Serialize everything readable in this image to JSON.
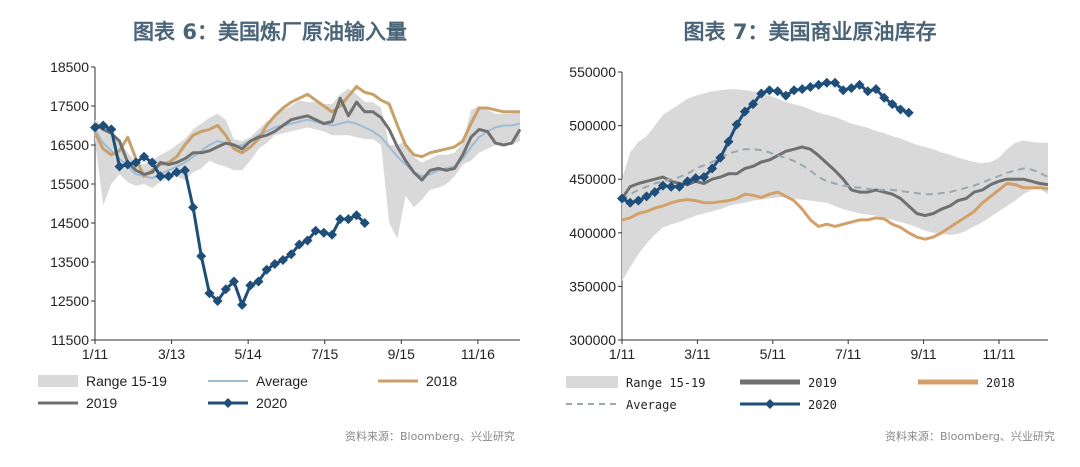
{
  "left": {
    "title": "图表 6：美国炼厂原油输入量",
    "source": "资料来源：Bloomberg、兴业研究",
    "chart_data": {
      "type": "line",
      "title": "图表 6：美国炼厂原油输入量",
      "xlabel": "",
      "ylabel": "",
      "x_ticks": [
        "1/11",
        "3/13",
        "5/14",
        "7/15",
        "9/15",
        "11/16"
      ],
      "y_ticks": [
        11500,
        12500,
        13500,
        14500,
        15500,
        16500,
        17500,
        18500
      ],
      "ylim": [
        11500,
        18500
      ],
      "x_range_weeks": [
        0,
        52
      ],
      "grid": false,
      "legend": [
        "Range 15-19",
        "Average",
        "2018",
        "2019",
        "2020"
      ],
      "series": [
        {
          "name": "Range 15-19",
          "type": "band",
          "color": "#d9d9d9",
          "upper": [
            17150,
            16900,
            16750,
            16600,
            16300,
            16050,
            16000,
            16100,
            16250,
            16350,
            16500,
            16650,
            16900,
            17050,
            17200,
            17300,
            17150,
            16650,
            16600,
            16700,
            16900,
            17100,
            17250,
            17400,
            17500,
            17650,
            17600,
            17600,
            17550,
            17550,
            17800,
            17950,
            17800,
            17600,
            17600,
            17450,
            16500,
            16500,
            16600,
            16200,
            16050,
            16150,
            16250,
            16250,
            16300,
            16550,
            17400,
            17500,
            17400,
            17300,
            17300,
            17300,
            17400
          ],
          "lower": [
            16600,
            14950,
            15500,
            15750,
            15550,
            15450,
            15500,
            15400,
            15550,
            15650,
            15700,
            15600,
            15800,
            15900,
            16100,
            16000,
            15950,
            15850,
            15850,
            16100,
            16400,
            16550,
            16750,
            16800,
            16850,
            16900,
            16950,
            16900,
            16850,
            16750,
            16750,
            16750,
            16700,
            16650,
            16650,
            16500,
            14500,
            14100,
            15200,
            14900,
            15100,
            15350,
            15400,
            15500,
            15700,
            16000,
            16100,
            16300,
            16400,
            16500,
            16550,
            16500,
            16600
          ]
        },
        {
          "name": "Average",
          "color": "#9fbcd3",
          "values": [
            16900,
            16550,
            16350,
            16150,
            15950,
            15750,
            15700,
            15650,
            15750,
            15850,
            15950,
            16050,
            16200,
            16350,
            16500,
            16600,
            16550,
            16450,
            16500,
            16600,
            16750,
            16850,
            16950,
            17000,
            17050,
            17100,
            17150,
            17100,
            17050,
            17000,
            17050,
            17100,
            17050,
            16950,
            16850,
            16700,
            16450,
            16200,
            16000,
            15800,
            15700,
            15750,
            15850,
            15900,
            15950,
            16150,
            16450,
            16700,
            16850,
            16950,
            17000,
            17000,
            17050
          ]
        },
        {
          "name": "2018",
          "color": "#c8a06a",
          "values": [
            16800,
            16400,
            16250,
            16350,
            16700,
            16150,
            15700,
            15850,
            16000,
            16050,
            16200,
            16500,
            16750,
            16850,
            16900,
            17000,
            16750,
            16400,
            16300,
            16450,
            16650,
            17000,
            17250,
            17450,
            17600,
            17700,
            17800,
            17650,
            17500,
            17350,
            17500,
            17750,
            18000,
            17850,
            17800,
            17650,
            17550,
            17000,
            16500,
            16250,
            16200,
            16300,
            16350,
            16400,
            16450,
            16600,
            17050,
            17450,
            17450,
            17400,
            17350,
            17350,
            17350
          ]
        },
        {
          "name": "2019",
          "color": "#707070",
          "values": [
            17050,
            16900,
            16800,
            16600,
            16050,
            15850,
            15750,
            15800,
            16050,
            16000,
            16050,
            16150,
            16300,
            16300,
            16350,
            16450,
            16550,
            16500,
            16400,
            16600,
            16700,
            16750,
            16850,
            17000,
            17150,
            17200,
            17250,
            17150,
            17050,
            17100,
            17700,
            17250,
            17600,
            17350,
            17350,
            17200,
            16900,
            16450,
            16100,
            15800,
            15600,
            15850,
            15900,
            15850,
            15900,
            16250,
            16700,
            16900,
            16850,
            16550,
            16500,
            16550,
            16900
          ]
        },
        {
          "name": "2020",
          "color": "#1e4e79",
          "marker": "diamond",
          "values": [
            16950,
            17000,
            16900,
            15950,
            16000,
            16050,
            16200,
            16050,
            15700,
            15700,
            15800,
            15850,
            14900,
            13650,
            12700,
            12500,
            12800,
            13000,
            12400,
            12900,
            13000,
            13300,
            13450,
            13550,
            13700,
            13950,
            14050,
            14300,
            14250,
            14200,
            14600,
            14600,
            14700,
            14500
          ]
        }
      ]
    }
  },
  "right": {
    "title": "图表 7：美国商业原油库存",
    "source": "资料来源：Bloomberg、兴业研究",
    "chart_data": {
      "type": "line",
      "title": "图表 7：美国商业原油库存",
      "xlabel": "",
      "ylabel": "",
      "x_ticks": [
        "1/11",
        "3/11",
        "5/11",
        "7/11",
        "9/11",
        "11/11"
      ],
      "y_ticks": [
        300000,
        350000,
        400000,
        450000,
        500000,
        550000
      ],
      "ylim": [
        300000,
        550000
      ],
      "x_range_weeks": [
        0,
        52
      ],
      "grid": false,
      "legend": [
        "Range 15-19",
        "2019",
        "2018",
        "Average",
        "2020"
      ],
      "series": [
        {
          "name": "Range 15-19",
          "type": "band",
          "color": "#d9d9d9",
          "upper": [
            450000,
            475000,
            485000,
            490000,
            500000,
            510000,
            515000,
            520000,
            525000,
            528000,
            530000,
            532000,
            533000,
            534000,
            534000,
            533000,
            532000,
            530000,
            528000,
            525000,
            522000,
            520000,
            518000,
            515000,
            512000,
            510000,
            508000,
            505000,
            502000,
            500000,
            498000,
            495000,
            493000,
            490000,
            488000,
            485000,
            482000,
            480000,
            478000,
            475000,
            473000,
            470000,
            468000,
            466000,
            465000,
            466000,
            470000,
            478000,
            484000,
            486000,
            485000,
            484000,
            484000
          ],
          "lower": [
            355000,
            368000,
            380000,
            390000,
            398000,
            405000,
            408000,
            410000,
            413000,
            416000,
            418000,
            420000,
            422000,
            425000,
            427000,
            428000,
            430000,
            431000,
            432000,
            433000,
            433000,
            432000,
            431000,
            430000,
            429000,
            428000,
            425000,
            422000,
            420000,
            418000,
            417000,
            416000,
            414000,
            412000,
            410000,
            408000,
            405000,
            402000,
            400000,
            399000,
            398000,
            399000,
            402000,
            406000,
            410000,
            415000,
            420000,
            425000,
            430000,
            436000,
            440000,
            441000,
            436000
          ]
        },
        {
          "name": "2019",
          "color": "#707070",
          "values": [
            432000,
            443000,
            446000,
            448000,
            450000,
            452000,
            448000,
            446000,
            445000,
            448000,
            446000,
            450000,
            452000,
            455000,
            455000,
            460000,
            462000,
            466000,
            468000,
            472000,
            476000,
            478000,
            480000,
            478000,
            472000,
            465000,
            458000,
            450000,
            440000,
            438000,
            438000,
            440000,
            438000,
            436000,
            432000,
            425000,
            418000,
            416000,
            418000,
            422000,
            425000,
            430000,
            432000,
            438000,
            440000,
            445000,
            448000,
            450000,
            450000,
            450000,
            448000,
            446000,
            445000
          ]
        },
        {
          "name": "2018",
          "color": "#d4a06a",
          "values": [
            412000,
            414000,
            418000,
            420000,
            423000,
            425000,
            428000,
            430000,
            431000,
            430000,
            428000,
            428000,
            429000,
            430000,
            432000,
            436000,
            435000,
            433000,
            436000,
            438000,
            434000,
            430000,
            422000,
            412000,
            406000,
            408000,
            406000,
            408000,
            410000,
            412000,
            412000,
            414000,
            413000,
            408000,
            405000,
            400000,
            396000,
            394000,
            396000,
            400000,
            405000,
            410000,
            415000,
            420000,
            428000,
            434000,
            440000,
            446000,
            445000,
            442000,
            442000,
            442000,
            441000
          ]
        },
        {
          "name": "Average",
          "color": "#9aa8b0",
          "dash": true,
          "values": [
            430000,
            436000,
            440000,
            443000,
            446000,
            448000,
            450000,
            452000,
            455000,
            460000,
            463000,
            466000,
            470000,
            474000,
            476000,
            478000,
            478000,
            477000,
            475000,
            472000,
            470000,
            467000,
            463000,
            458000,
            452000,
            448000,
            446000,
            444000,
            443000,
            442000,
            441000,
            440000,
            440000,
            440000,
            439000,
            438000,
            437000,
            436000,
            436000,
            437000,
            438000,
            440000,
            442000,
            444000,
            447000,
            450000,
            453000,
            456000,
            458000,
            460000,
            459000,
            456000,
            452000
          ]
        },
        {
          "name": "2020",
          "color": "#1e4e79",
          "marker": "diamond",
          "values": [
            432000,
            428000,
            430000,
            434000,
            438000,
            444000,
            443000,
            443000,
            448000,
            451000,
            452000,
            460000,
            470000,
            485000,
            501000,
            513000,
            520000,
            530000,
            533000,
            532000,
            528000,
            533000,
            534000,
            536000,
            538000,
            540000,
            540000,
            533000,
            535000,
            538000,
            532000,
            534000,
            526000,
            520000,
            515000,
            512000
          ]
        }
      ]
    }
  }
}
